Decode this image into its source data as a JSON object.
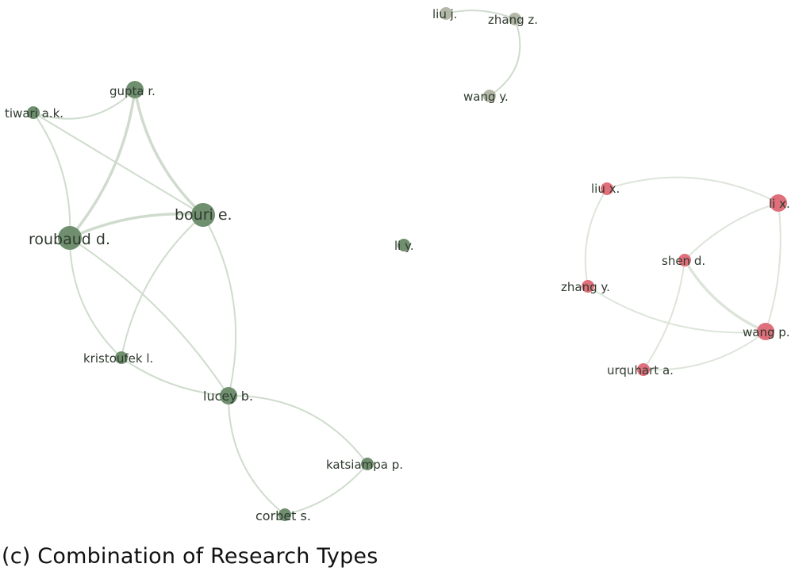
{
  "figure": {
    "caption": "(c) Combination of Research Types"
  },
  "colors": {
    "green_cluster": "#6f8f6f",
    "grey_cluster": "#b3b7a6",
    "red_cluster": "#df6f7a",
    "green_edge": "#cfdccd",
    "red_edge": "#dde5da",
    "label": "#2f3a2f"
  },
  "network": {
    "clusters": [
      {
        "id": "green",
        "color": "#6f8f6f"
      },
      {
        "id": "grey",
        "color": "#b3b7a6"
      },
      {
        "id": "red",
        "color": "#df6f7a"
      }
    ],
    "nodes": [
      {
        "id": "gupta",
        "label": "gupta r.",
        "cluster": "green",
        "weight": "medium"
      },
      {
        "id": "tiwari",
        "label": "tiwari a.k.",
        "cluster": "green",
        "weight": "small"
      },
      {
        "id": "bouri",
        "label": "bouri e.",
        "cluster": "green",
        "weight": "large"
      },
      {
        "id": "roubaud",
        "label": "roubaud d.",
        "cluster": "green",
        "weight": "large"
      },
      {
        "id": "kristoufek",
        "label": "kristoufek l.",
        "cluster": "green",
        "weight": "small"
      },
      {
        "id": "lucey",
        "label": "lucey b.",
        "cluster": "green",
        "weight": "medium"
      },
      {
        "id": "katsiampa",
        "label": "katsiampa p.",
        "cluster": "green",
        "weight": "small"
      },
      {
        "id": "corbet",
        "label": "corbet s.",
        "cluster": "green",
        "weight": "small"
      },
      {
        "id": "liy",
        "label": "li y.",
        "cluster": "green",
        "weight": "small"
      },
      {
        "id": "liuj",
        "label": "liu j.",
        "cluster": "grey",
        "weight": "small"
      },
      {
        "id": "zhangz",
        "label": "zhang z.",
        "cluster": "grey",
        "weight": "small"
      },
      {
        "id": "wangy",
        "label": "wang y.",
        "cluster": "grey",
        "weight": "small"
      },
      {
        "id": "liux",
        "label": "liu x.",
        "cluster": "red",
        "weight": "small"
      },
      {
        "id": "lix",
        "label": "li x.",
        "cluster": "red",
        "weight": "medium"
      },
      {
        "id": "shend",
        "label": "shen d.",
        "cluster": "red",
        "weight": "small"
      },
      {
        "id": "zhangy",
        "label": "zhang y.",
        "cluster": "red",
        "weight": "small"
      },
      {
        "id": "wangp",
        "label": "wang p.",
        "cluster": "red",
        "weight": "medium"
      },
      {
        "id": "urquhart",
        "label": "urquhart a.",
        "cluster": "red",
        "weight": "small"
      }
    ],
    "edges": [
      {
        "source": "gupta",
        "target": "tiwari",
        "strength": "weak"
      },
      {
        "source": "gupta",
        "target": "bouri",
        "strength": "strong"
      },
      {
        "source": "gupta",
        "target": "roubaud",
        "strength": "strong"
      },
      {
        "source": "tiwari",
        "target": "bouri",
        "strength": "weak"
      },
      {
        "source": "tiwari",
        "target": "roubaud",
        "strength": "weak"
      },
      {
        "source": "roubaud",
        "target": "bouri",
        "strength": "strong"
      },
      {
        "source": "roubaud",
        "target": "kristoufek",
        "strength": "weak"
      },
      {
        "source": "roubaud",
        "target": "lucey",
        "strength": "weak"
      },
      {
        "source": "bouri",
        "target": "kristoufek",
        "strength": "weak"
      },
      {
        "source": "bouri",
        "target": "lucey",
        "strength": "weak"
      },
      {
        "source": "kristoufek",
        "target": "lucey",
        "strength": "weak"
      },
      {
        "source": "lucey",
        "target": "katsiampa",
        "strength": "weak"
      },
      {
        "source": "lucey",
        "target": "corbet",
        "strength": "weak"
      },
      {
        "source": "katsiampa",
        "target": "corbet",
        "strength": "weak"
      },
      {
        "source": "liuj",
        "target": "zhangz",
        "strength": "weak"
      },
      {
        "source": "zhangz",
        "target": "wangy",
        "strength": "weak"
      },
      {
        "source": "liux",
        "target": "lix",
        "strength": "weak"
      },
      {
        "source": "liux",
        "target": "zhangy",
        "strength": "weak"
      },
      {
        "source": "lix",
        "target": "shend",
        "strength": "weak"
      },
      {
        "source": "lix",
        "target": "wangp",
        "strength": "weak"
      },
      {
        "source": "shend",
        "target": "wangp",
        "strength": "strong"
      },
      {
        "source": "shend",
        "target": "urquhart",
        "strength": "weak"
      },
      {
        "source": "zhangy",
        "target": "wangp",
        "strength": "weak"
      },
      {
        "source": "urquhart",
        "target": "wangp",
        "strength": "weak"
      }
    ]
  }
}
